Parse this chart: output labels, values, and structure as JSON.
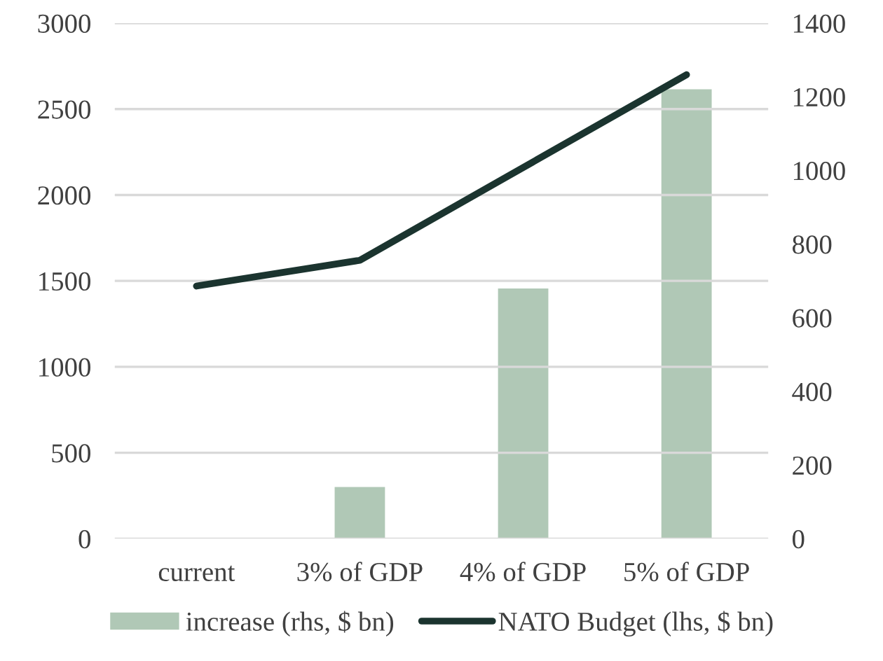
{
  "chart_data": {
    "type": "bar",
    "categories": [
      "current",
      "3% of GDP",
      "4% of GDP",
      "5% of GDP"
    ],
    "series": [
      {
        "name": "increase (rhs, $ bn)",
        "axis": "y2",
        "color": "#b0c8b6",
        "values": [
          null,
          143,
          682,
          1223
        ]
      },
      {
        "name": "NATO Budget (lhs, $ bn)",
        "type": "line",
        "color": "#1b342f",
        "values": [
          1470,
          1620,
          2160,
          2700
        ]
      }
    ],
    "ylim": [
      0,
      3000
    ],
    "yticks": [
      0,
      500,
      1000,
      1500,
      2000,
      2500,
      3000
    ],
    "y2lim": [
      0,
      1400
    ],
    "y2ticks": [
      0,
      200,
      400,
      600,
      800,
      1000,
      1200,
      1400
    ],
    "grid": "y",
    "legend": "bottom",
    "marker": "none",
    "line_style": "solid"
  }
}
